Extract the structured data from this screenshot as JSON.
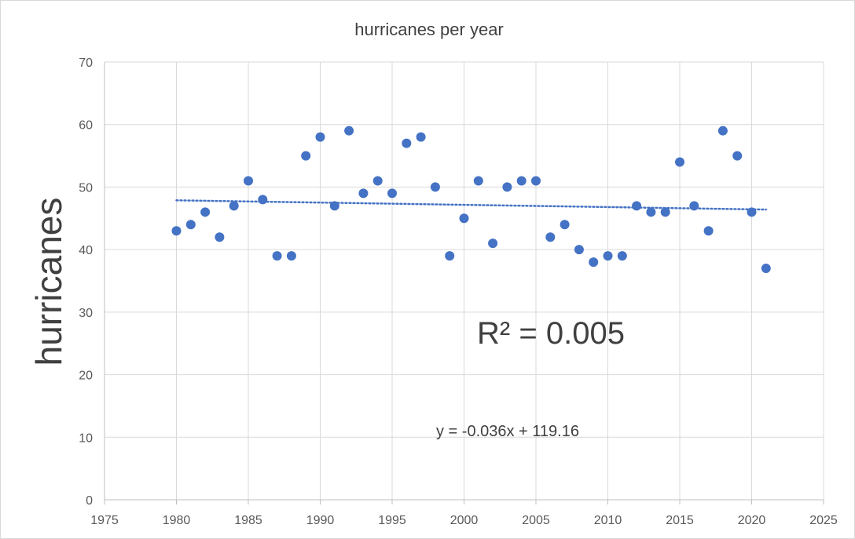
{
  "chart_data": {
    "type": "scatter",
    "title": "hurricanes per year",
    "xlabel": "",
    "ylabel": "hurricanes",
    "xlim": [
      1975,
      2025
    ],
    "ylim": [
      0,
      70
    ],
    "x_ticks": [
      "1975",
      "1980",
      "1985",
      "1990",
      "1995",
      "2000",
      "2005",
      "2010",
      "2015",
      "2020",
      "2025"
    ],
    "y_ticks": [
      "0",
      "10",
      "20",
      "30",
      "40",
      "50",
      "60",
      "70"
    ],
    "grid": true,
    "series": [
      {
        "name": "hurricanes",
        "color": "#4472c4",
        "x": [
          1980,
          1981,
          1982,
          1983,
          1984,
          1985,
          1986,
          1987,
          1988,
          1989,
          1990,
          1991,
          1992,
          1993,
          1994,
          1995,
          1996,
          1997,
          1998,
          1999,
          2000,
          2001,
          2002,
          2003,
          2004,
          2005,
          2006,
          2007,
          2008,
          2009,
          2010,
          2011,
          2012,
          2013,
          2014,
          2015,
          2016,
          2017,
          2018,
          2019,
          2020,
          2021
        ],
        "y": [
          43,
          44,
          46,
          42,
          47,
          51,
          48,
          39,
          39,
          55,
          58,
          47,
          59,
          49,
          51,
          49,
          57,
          58,
          50,
          39,
          45,
          51,
          41,
          50,
          51,
          51,
          42,
          44,
          40,
          38,
          39,
          39,
          47,
          46,
          46,
          54,
          47,
          43,
          59,
          55,
          46,
          37
        ]
      }
    ],
    "trendline": {
      "type": "linear",
      "slope": -0.036,
      "intercept": 119.16,
      "x_range": [
        1980,
        2021
      ],
      "color": "#4472c4",
      "equation_label": "y = -0.036x + 119.16",
      "r2_label": "R² = 0.005"
    }
  }
}
